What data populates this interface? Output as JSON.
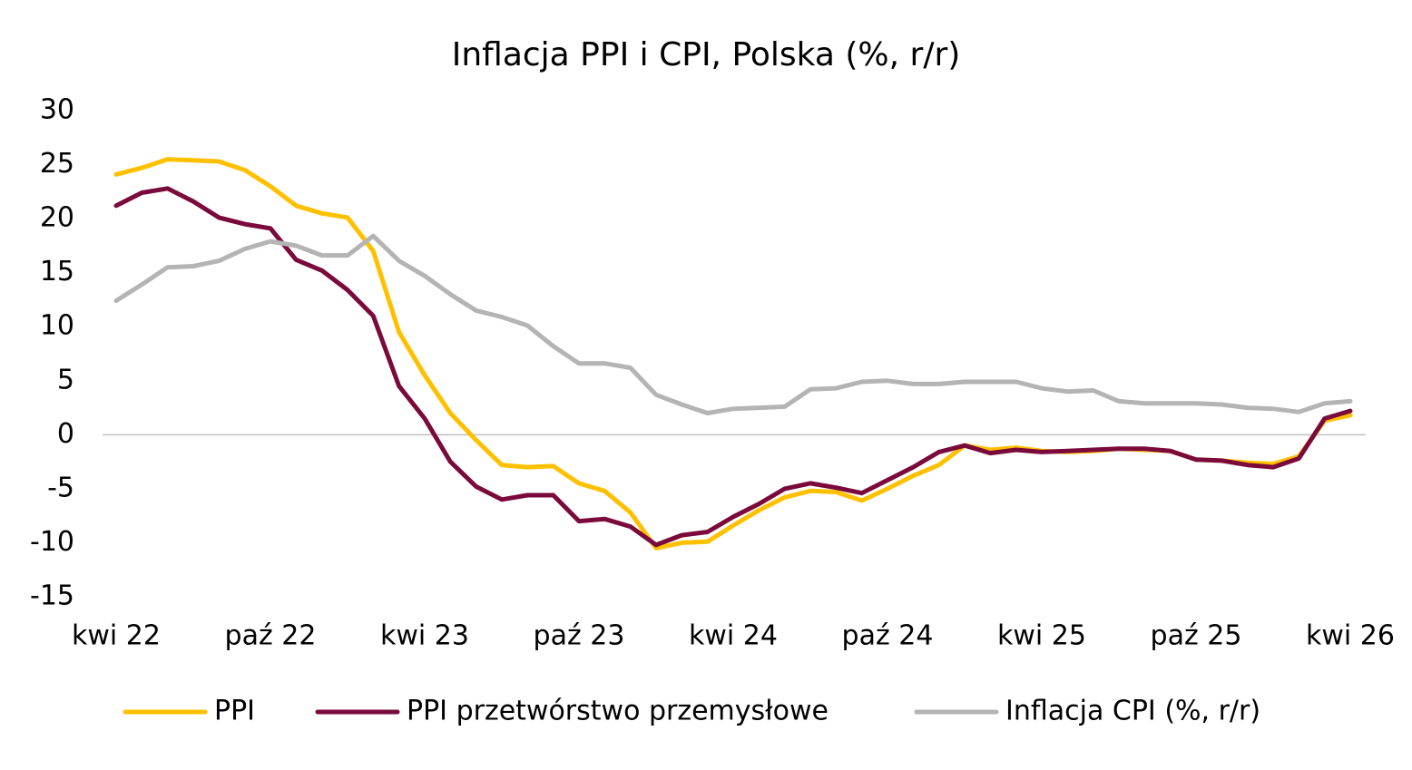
{
  "chart_data": {
    "type": "line",
    "title": "Inflacja PPI i CPI, Polska (%, r/r)",
    "categories": [
      "kwi 22",
      null,
      null,
      null,
      null,
      null,
      "paź 22",
      null,
      null,
      null,
      null,
      null,
      "kwi 23",
      null,
      null,
      null,
      null,
      null,
      "paź 23",
      null,
      null,
      null,
      null,
      null,
      "kwi 24",
      null,
      null,
      null,
      null,
      null,
      "paź 24",
      null,
      null,
      null,
      null,
      null,
      "kwi 25",
      null,
      null,
      null,
      null,
      null,
      "paź 25",
      null,
      null,
      null,
      null,
      null,
      "kwi 26"
    ],
    "series": [
      {
        "name": "PPI",
        "color": "#ffc000",
        "values": [
          24.1,
          24.7,
          25.5,
          25.4,
          25.3,
          24.5,
          23.0,
          21.2,
          20.5,
          20.1,
          17.0,
          9.5,
          5.5,
          2.0,
          -0.5,
          -2.8,
          -3.0,
          -2.9,
          -4.5,
          -5.2,
          -7.2,
          -10.5,
          -10.0,
          -9.9,
          -8.4,
          -7.0,
          -5.8,
          -5.2,
          -5.3,
          -6.1,
          -5.0,
          -3.8,
          -2.8,
          -1.0,
          -1.4,
          -1.2,
          -1.5,
          -1.6,
          -1.5,
          -1.3,
          -1.4,
          -1.5,
          -2.3,
          -2.4,
          -2.6,
          -2.7,
          -2.0,
          1.3,
          1.8
        ]
      },
      {
        "name": "PPI przetwórstwo przemysłowe",
        "color": "#7b0a3c",
        "values": [
          21.2,
          22.4,
          22.8,
          21.6,
          20.1,
          19.5,
          19.1,
          16.2,
          15.2,
          13.4,
          11.0,
          4.5,
          1.5,
          -2.5,
          -4.8,
          -6.0,
          -5.6,
          -5.6,
          -8.0,
          -7.8,
          -8.5,
          -10.2,
          -9.3,
          -9.0,
          -7.6,
          -6.4,
          -5.0,
          -4.5,
          -4.9,
          -5.4,
          -4.2,
          -3.0,
          -1.6,
          -1.0,
          -1.7,
          -1.4,
          -1.6,
          -1.5,
          -1.4,
          -1.3,
          -1.3,
          -1.5,
          -2.3,
          -2.4,
          -2.8,
          -3.0,
          -2.2,
          1.5,
          2.2
        ]
      },
      {
        "name": "Inflacja CPI (%, r/r)",
        "color": "#b4b4b4",
        "values": [
          12.4,
          13.9,
          15.5,
          15.6,
          16.1,
          17.2,
          17.9,
          17.5,
          16.6,
          16.6,
          18.4,
          16.1,
          14.7,
          13.0,
          11.5,
          10.9,
          10.1,
          8.2,
          6.6,
          6.6,
          6.2,
          3.7,
          2.8,
          2.0,
          2.4,
          2.5,
          2.6,
          4.2,
          4.3,
          4.9,
          5.0,
          4.7,
          4.7,
          4.9,
          4.9,
          4.9,
          4.3,
          4.0,
          4.1,
          3.1,
          2.9,
          2.9,
          2.9,
          2.8,
          2.5,
          2.4,
          2.1,
          2.9,
          3.1
        ]
      }
    ],
    "ylim": [
      -15,
      30
    ],
    "yticks": [
      -15,
      -10,
      -5,
      0,
      5,
      10,
      15,
      20,
      25,
      30
    ],
    "grid": false,
    "legend": "bottom"
  }
}
